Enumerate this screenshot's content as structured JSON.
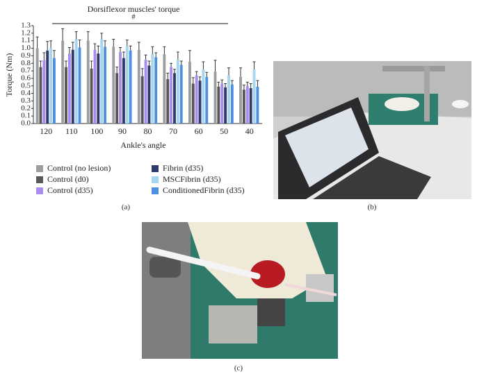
{
  "chart_data": {
    "type": "bar",
    "title": "Dorsiflexor muscles' torque",
    "annotation": "#",
    "y_label": "Torque (Nm)",
    "x_label": "Ankle's angle",
    "categories": [
      "120",
      "110",
      "100",
      "90",
      "80",
      "70",
      "60",
      "50",
      "40"
    ],
    "series": [
      {
        "name": "Control (no lesion)",
        "color": "#9d9d9f",
        "values": [
          1.0,
          1.1,
          1.1,
          1.02,
          0.98,
          0.92,
          0.82,
          0.69,
          0.62
        ],
        "errors": [
          0.15,
          0.16,
          0.12,
          0.1,
          0.1,
          0.1,
          0.15,
          0.15,
          0.12
        ]
      },
      {
        "name": "Control (d0)",
        "color": "#575757",
        "values": [
          0.75,
          0.75,
          0.73,
          0.67,
          0.63,
          0.59,
          0.53,
          0.49,
          0.45
        ],
        "errors": [
          0.08,
          0.08,
          0.1,
          0.08,
          0.1,
          0.08,
          0.08,
          0.06,
          0.06
        ]
      },
      {
        "name": "Control (d35)",
        "color": "#a98cf0",
        "values": [
          0.84,
          0.93,
          0.98,
          0.95,
          0.85,
          0.75,
          0.64,
          0.53,
          0.5
        ],
        "errors": [
          0.1,
          0.08,
          0.08,
          0.06,
          0.06,
          0.05,
          0.05,
          0.05,
          0.05
        ]
      },
      {
        "name": "Fibrin (d35)",
        "color": "#2d3a6b",
        "values": [
          0.97,
          0.98,
          0.93,
          0.87,
          0.77,
          0.67,
          0.57,
          0.48,
          0.47
        ],
        "errors": [
          0.12,
          0.1,
          0.1,
          0.08,
          0.06,
          0.05,
          0.05,
          0.05,
          0.06
        ]
      },
      {
        "name": "MSCFibrin (d35)",
        "color": "#a6d5ef",
        "values": [
          1.0,
          1.12,
          1.12,
          1.03,
          0.92,
          0.85,
          0.72,
          0.64,
          0.72
        ],
        "errors": [
          0.1,
          0.1,
          0.08,
          0.08,
          0.1,
          0.1,
          0.1,
          0.1,
          0.1
        ]
      },
      {
        "name": "ConditionedFibrin (d35)",
        "color": "#4d8fe0",
        "values": [
          0.87,
          1.01,
          1.02,
          0.97,
          0.88,
          0.78,
          0.62,
          0.52,
          0.49
        ],
        "errors": [
          0.1,
          0.1,
          0.08,
          0.06,
          0.06,
          0.05,
          0.06,
          0.05,
          0.08
        ]
      }
    ],
    "ylim": [
      0,
      1.3
    ],
    "yticks": [
      {
        "value": 0,
        "label": "0.0"
      },
      0.1,
      0.2,
      0.3,
      0.4,
      0.5,
      0.6,
      0.7,
      0.8,
      0.9,
      {
        "value": 1,
        "label": "1.0"
      },
      1.1,
      1.2,
      1.3
    ],
    "grid": false
  },
  "panel_labels": [
    "(a)",
    "(b)",
    "(c)"
  ]
}
